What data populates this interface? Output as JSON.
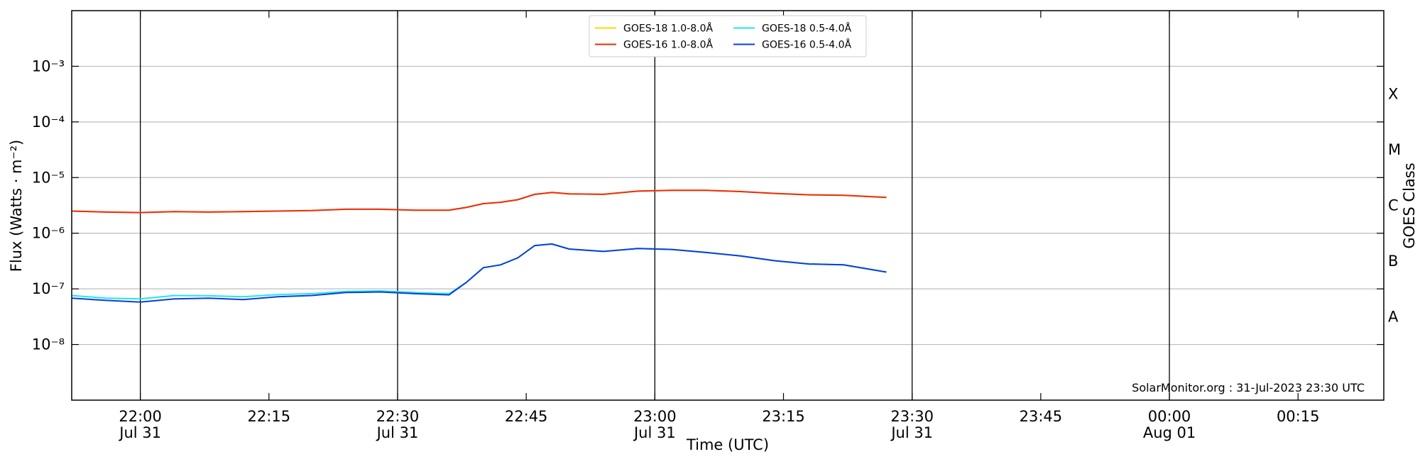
{
  "chart_data": {
    "type": "line",
    "log_y": true,
    "grid": true,
    "legend": "upper center",
    "legend_columns": 2,
    "xlabel": "Time (UTC)",
    "ylabel": "Flux (Watts · m⁻²)",
    "y2label": "GOES Class",
    "annotation": "SolarMonitor.org : 31-Jul-2023 23:30 UTC",
    "xlim": [
      "07-31 21:52",
      "08-01 00:25"
    ],
    "xticks": [
      {
        "value": "07-31 22:00",
        "label": "22:00\nJul 31"
      },
      {
        "value": "07-31 22:15",
        "label": "22:15"
      },
      {
        "value": "07-31 22:30",
        "label": "22:30\nJul 31"
      },
      {
        "value": "07-31 22:45",
        "label": "22:45"
      },
      {
        "value": "07-31 23:00",
        "label": "23:00\nJul 31"
      },
      {
        "value": "07-31 23:15",
        "label": "23:15"
      },
      {
        "value": "07-31 23:30",
        "label": "23:30\nJul 31"
      },
      {
        "value": "07-31 23:45",
        "label": "23:45"
      },
      {
        "value": "08-01 00:00",
        "label": "00:00\nAug 01"
      },
      {
        "value": "08-01 00:15",
        "label": "00:15"
      }
    ],
    "ylim": [
      1e-09,
      0.01
    ],
    "yticks": [
      {
        "value": 1e-08,
        "label": "10⁻⁸"
      },
      {
        "value": 1e-07,
        "label": "10⁻⁷"
      },
      {
        "value": 1e-06,
        "label": "10⁻⁶"
      },
      {
        "value": 1e-05,
        "label": "10⁻⁵"
      },
      {
        "value": 0.0001,
        "label": "10⁻⁴"
      },
      {
        "value": 0.001,
        "label": "10⁻³"
      }
    ],
    "y2lim": [
      1e-09,
      0.01
    ],
    "y2ticks": [
      {
        "value": 3.16e-08,
        "label": "A"
      },
      {
        "value": 3.16e-07,
        "label": "B"
      },
      {
        "value": 3.16e-06,
        "label": "C"
      },
      {
        "value": 3.16e-05,
        "label": "M"
      },
      {
        "value": 0.000316,
        "label": "X"
      }
    ],
    "x": [
      "07-31 21:52",
      "07-31 21:56",
      "07-31 22:00",
      "07-31 22:04",
      "07-31 22:08",
      "07-31 22:12",
      "07-31 22:16",
      "07-31 22:20",
      "07-31 22:24",
      "07-31 22:28",
      "07-31 22:32",
      "07-31 22:36",
      "07-31 22:38",
      "07-31 22:40",
      "07-31 22:42",
      "07-31 22:44",
      "07-31 22:46",
      "07-31 22:48",
      "07-31 22:50",
      "07-31 22:54",
      "07-31 22:58",
      "07-31 23:02",
      "07-31 23:06",
      "07-31 23:10",
      "07-31 23:14",
      "07-31 23:18",
      "07-31 23:22",
      "07-31 23:27"
    ],
    "series": [
      {
        "name": "GOES-18 1.0-8.0Å",
        "color": "#ffd700",
        "values": [
          2.5e-06,
          2.4e-06,
          2.35e-06,
          2.45e-06,
          2.4e-06,
          2.45e-06,
          2.5e-06,
          2.55e-06,
          2.7e-06,
          2.7e-06,
          2.6e-06,
          2.6e-06,
          2.9e-06,
          3.4e-06,
          3.6e-06,
          4e-06,
          5e-06,
          5.4e-06,
          5.1e-06,
          5e-06,
          5.7e-06,
          5.9e-06,
          5.9e-06,
          5.6e-06,
          5.2e-06,
          4.9e-06,
          4.8e-06,
          4.4e-06
        ]
      },
      {
        "name": "GOES-16 1.0-8.0Å",
        "color": "#ee2a0e",
        "values": [
          2.5e-06,
          2.4e-06,
          2.35e-06,
          2.45e-06,
          2.4e-06,
          2.45e-06,
          2.5e-06,
          2.55e-06,
          2.7e-06,
          2.7e-06,
          2.6e-06,
          2.6e-06,
          2.9e-06,
          3.4e-06,
          3.6e-06,
          4e-06,
          5e-06,
          5.4e-06,
          5.1e-06,
          5e-06,
          5.7e-06,
          5.9e-06,
          5.9e-06,
          5.6e-06,
          5.2e-06,
          4.9e-06,
          4.8e-06,
          4.4e-06
        ]
      },
      {
        "name": "GOES-18 0.5-4.0Å",
        "color": "#22e5f2",
        "values": [
          7.6e-08,
          6.8e-08,
          6.6e-08,
          7.6e-08,
          7.5e-08,
          7.2e-08,
          7.9e-08,
          8.2e-08,
          9e-08,
          9.2e-08,
          8.6e-08,
          8.2e-08,
          1.3e-07,
          2.4e-07,
          2.7e-07,
          3.6e-07,
          6e-07,
          6.4e-07,
          5.2e-07,
          4.7e-07,
          5.3e-07,
          5.1e-07,
          4.5e-07,
          3.9e-07,
          3.2e-07,
          2.8e-07,
          2.7e-07,
          2e-07
        ]
      },
      {
        "name": "GOES-16 0.5-4.0Å",
        "color": "#0a3fd8",
        "values": [
          6.8e-08,
          6.2e-08,
          5.8e-08,
          6.6e-08,
          6.8e-08,
          6.4e-08,
          7.2e-08,
          7.6e-08,
          8.6e-08,
          8.8e-08,
          8.2e-08,
          7.8e-08,
          1.3e-07,
          2.4e-07,
          2.7e-07,
          3.6e-07,
          6e-07,
          6.4e-07,
          5.2e-07,
          4.7e-07,
          5.3e-07,
          5.1e-07,
          4.5e-07,
          3.9e-07,
          3.2e-07,
          2.8e-07,
          2.7e-07,
          2e-07
        ]
      }
    ]
  }
}
